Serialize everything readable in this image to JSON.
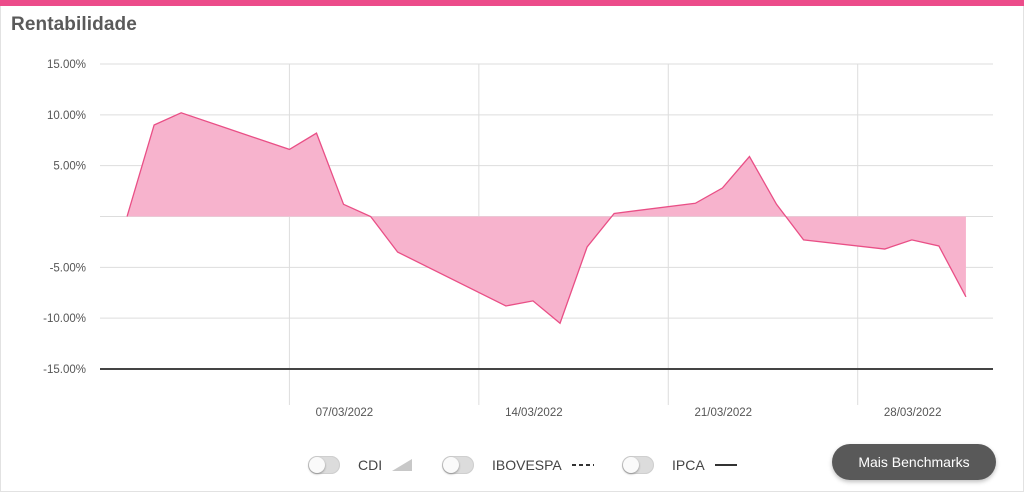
{
  "title": "Rentabilidade",
  "colors": {
    "accent": "#ec4c8a",
    "area_fill": "#f7b3cd",
    "area_line": "#e94f86",
    "zero_line": "#444444",
    "grid": "#dddddd"
  },
  "chart_data": {
    "type": "area",
    "title": "",
    "xlabel": "",
    "ylabel": "",
    "ylim": [
      -15,
      15
    ],
    "y_ticks": [
      "15.00%",
      "10.00%",
      "5.00%",
      "-5.00%",
      "-10.00%",
      "-15.00%"
    ],
    "y_tick_values": [
      15,
      10,
      5,
      -5,
      -10,
      -15
    ],
    "x_range": [
      "2022-02-28",
      "2022-04-02"
    ],
    "x_ticks": [
      "07/03/2022",
      "14/03/2022",
      "21/03/2022",
      "28/03/2022"
    ],
    "x_tick_dates": [
      "2022-03-07",
      "2022-03-14",
      "2022-03-21",
      "2022-03-28"
    ],
    "grid": true,
    "series": [
      {
        "values": [
          [
            "2022-03-01",
            0.0
          ],
          [
            "2022-03-02",
            9.0
          ],
          [
            "2022-03-03",
            10.2
          ],
          [
            "2022-03-07",
            6.6
          ],
          [
            "2022-03-08",
            8.2
          ],
          [
            "2022-03-09",
            1.2
          ],
          [
            "2022-03-10",
            0.0
          ],
          [
            "2022-03-11",
            -3.5
          ],
          [
            "2022-03-15",
            -8.8
          ],
          [
            "2022-03-16",
            -8.3
          ],
          [
            "2022-03-17",
            -10.5
          ],
          [
            "2022-03-18",
            -3.0
          ],
          [
            "2022-03-19",
            0.3
          ],
          [
            "2022-03-22",
            1.3
          ],
          [
            "2022-03-23",
            2.8
          ],
          [
            "2022-03-24",
            5.9
          ],
          [
            "2022-03-25",
            1.2
          ],
          [
            "2022-03-26",
            -2.3
          ],
          [
            "2022-03-29",
            -3.2
          ],
          [
            "2022-03-30",
            -2.3
          ],
          [
            "2022-03-31",
            -2.9
          ],
          [
            "2022-04-01",
            -7.9
          ]
        ]
      }
    ]
  },
  "legend": {
    "items": [
      {
        "label": "CDI",
        "icon": "area-triangle-icon"
      },
      {
        "label": "IBOVESPA",
        "icon": "dashed-line-icon"
      },
      {
        "label": "IPCA",
        "icon": "solid-line-icon"
      }
    ]
  },
  "benchmarks_button": "Mais Benchmarks"
}
